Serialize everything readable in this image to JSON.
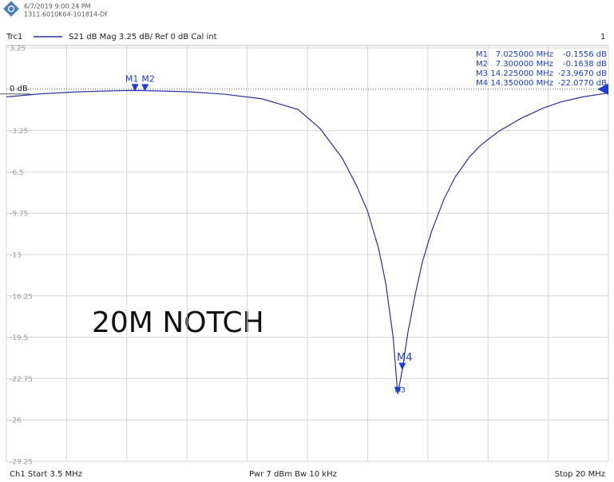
{
  "chart_data": {
    "type": "line",
    "header": {
      "timestamp": "6/7/2019 9:00:24 PM",
      "serial": "1311.6010K64-101814-Df"
    },
    "trace": {
      "name": "Trc1",
      "settings": "S21  dB Mag  3.25 dB/ Ref 0 dB  Cal int",
      "channel": "1"
    },
    "annotation": "20M NOTCH",
    "footer": {
      "start": "Ch1  Start 3.5 MHz",
      "power": "Pwr  7 dBm  Bw  10 kHz",
      "stop": "Stop  20 MHz"
    },
    "xlim": [
      3.5,
      20
    ],
    "xticks": [
      3.5,
      5.15,
      6.8,
      8.45,
      10.1,
      11.75,
      13.4,
      15.05,
      16.7,
      18.35,
      20
    ],
    "ylim": [
      -29.25,
      3.25
    ],
    "yticks": [
      3.25,
      {
        "value": 0,
        "label": "0 dB"
      },
      -3.25,
      -6.5,
      -9.75,
      -13,
      -16.25,
      -19.5,
      -22.75,
      -26,
      -29.25
    ],
    "grid": true,
    "series": [
      {
        "name": "Trc1",
        "color": "#2b2fa3",
        "x": [
          3.5,
          4.5,
          5.5,
          6.5,
          7.0,
          7.5,
          8.5,
          9.5,
          10.5,
          11.5,
          12.1,
          12.7,
          13.1,
          13.4,
          13.7,
          13.9,
          14.1,
          14.225,
          14.35,
          14.5,
          14.7,
          14.9,
          15.15,
          15.5,
          15.8,
          16.2,
          16.5,
          17.0,
          17.6,
          18.2,
          18.7,
          19.3,
          20.0
        ],
        "values": [
          -0.6,
          -0.35,
          -0.2,
          -0.12,
          -0.1,
          -0.12,
          -0.2,
          -0.4,
          -0.75,
          -1.6,
          -3.1,
          -5.4,
          -7.6,
          -9.6,
          -12.5,
          -15.3,
          -19.5,
          -23.967,
          -22.077,
          -19.2,
          -16.2,
          -13.6,
          -11.2,
          -8.6,
          -6.9,
          -5.3,
          -4.4,
          -3.3,
          -2.3,
          -1.5,
          -1.0,
          -0.6,
          -0.3
        ]
      }
    ],
    "markers": [
      {
        "name": "M1",
        "x": 7.025,
        "x_label": "7.025000 MHz",
        "value": -0.1556,
        "value_label": "-0.1556 dB"
      },
      {
        "name": "M2",
        "x": 7.3,
        "x_label": "7.300000 MHz",
        "value": -0.1638,
        "value_label": "-0.1638 dB"
      },
      {
        "name": "M3",
        "x": 14.225,
        "x_label": "14.225000 MHz",
        "value": -23.967,
        "value_label": "-23.9670 dB"
      },
      {
        "name": "M4",
        "x": 14.35,
        "x_label": "14.350000 MHz",
        "value": -22.077,
        "value_label": "-22.0770 dB"
      }
    ]
  }
}
